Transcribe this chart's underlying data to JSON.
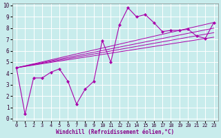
{
  "xlabel": "Windchill (Refroidissement éolien,°C)",
  "background_color": "#c8ecec",
  "line_color": "#aa00aa",
  "grid_color": "#aacccc",
  "grid_major_color": "#ffffff",
  "xlim": [
    -0.5,
    23.5
  ],
  "ylim": [
    -0.2,
    10.2
  ],
  "xticks": [
    0,
    1,
    2,
    3,
    4,
    5,
    6,
    7,
    8,
    9,
    10,
    11,
    12,
    13,
    14,
    15,
    16,
    17,
    18,
    19,
    20,
    21,
    22,
    23
  ],
  "yticks": [
    0,
    1,
    2,
    3,
    4,
    5,
    6,
    7,
    8,
    9,
    10
  ],
  "main_x": [
    0,
    1,
    2,
    3,
    4,
    5,
    6,
    7,
    8,
    9,
    10,
    11,
    12,
    13,
    14,
    15,
    16,
    17,
    18,
    19,
    20,
    21,
    22,
    23
  ],
  "main_y": [
    4.5,
    0.4,
    3.6,
    3.6,
    4.1,
    4.4,
    3.3,
    1.3,
    2.6,
    3.3,
    6.9,
    5.0,
    8.3,
    9.8,
    9.0,
    9.2,
    8.5,
    7.7,
    7.8,
    7.8,
    7.9,
    7.3,
    7.1,
    8.5
  ],
  "diag_lines": [
    {
      "x0": 0,
      "y0": 4.5,
      "x1": 23,
      "y1": 8.5
    },
    {
      "x0": 0,
      "y0": 4.5,
      "x1": 23,
      "y1": 8.0
    },
    {
      "x0": 0,
      "y0": 4.5,
      "x1": 23,
      "y1": 7.6
    },
    {
      "x0": 0,
      "y0": 4.5,
      "x1": 23,
      "y1": 7.2
    }
  ],
  "font_family": "monospace"
}
